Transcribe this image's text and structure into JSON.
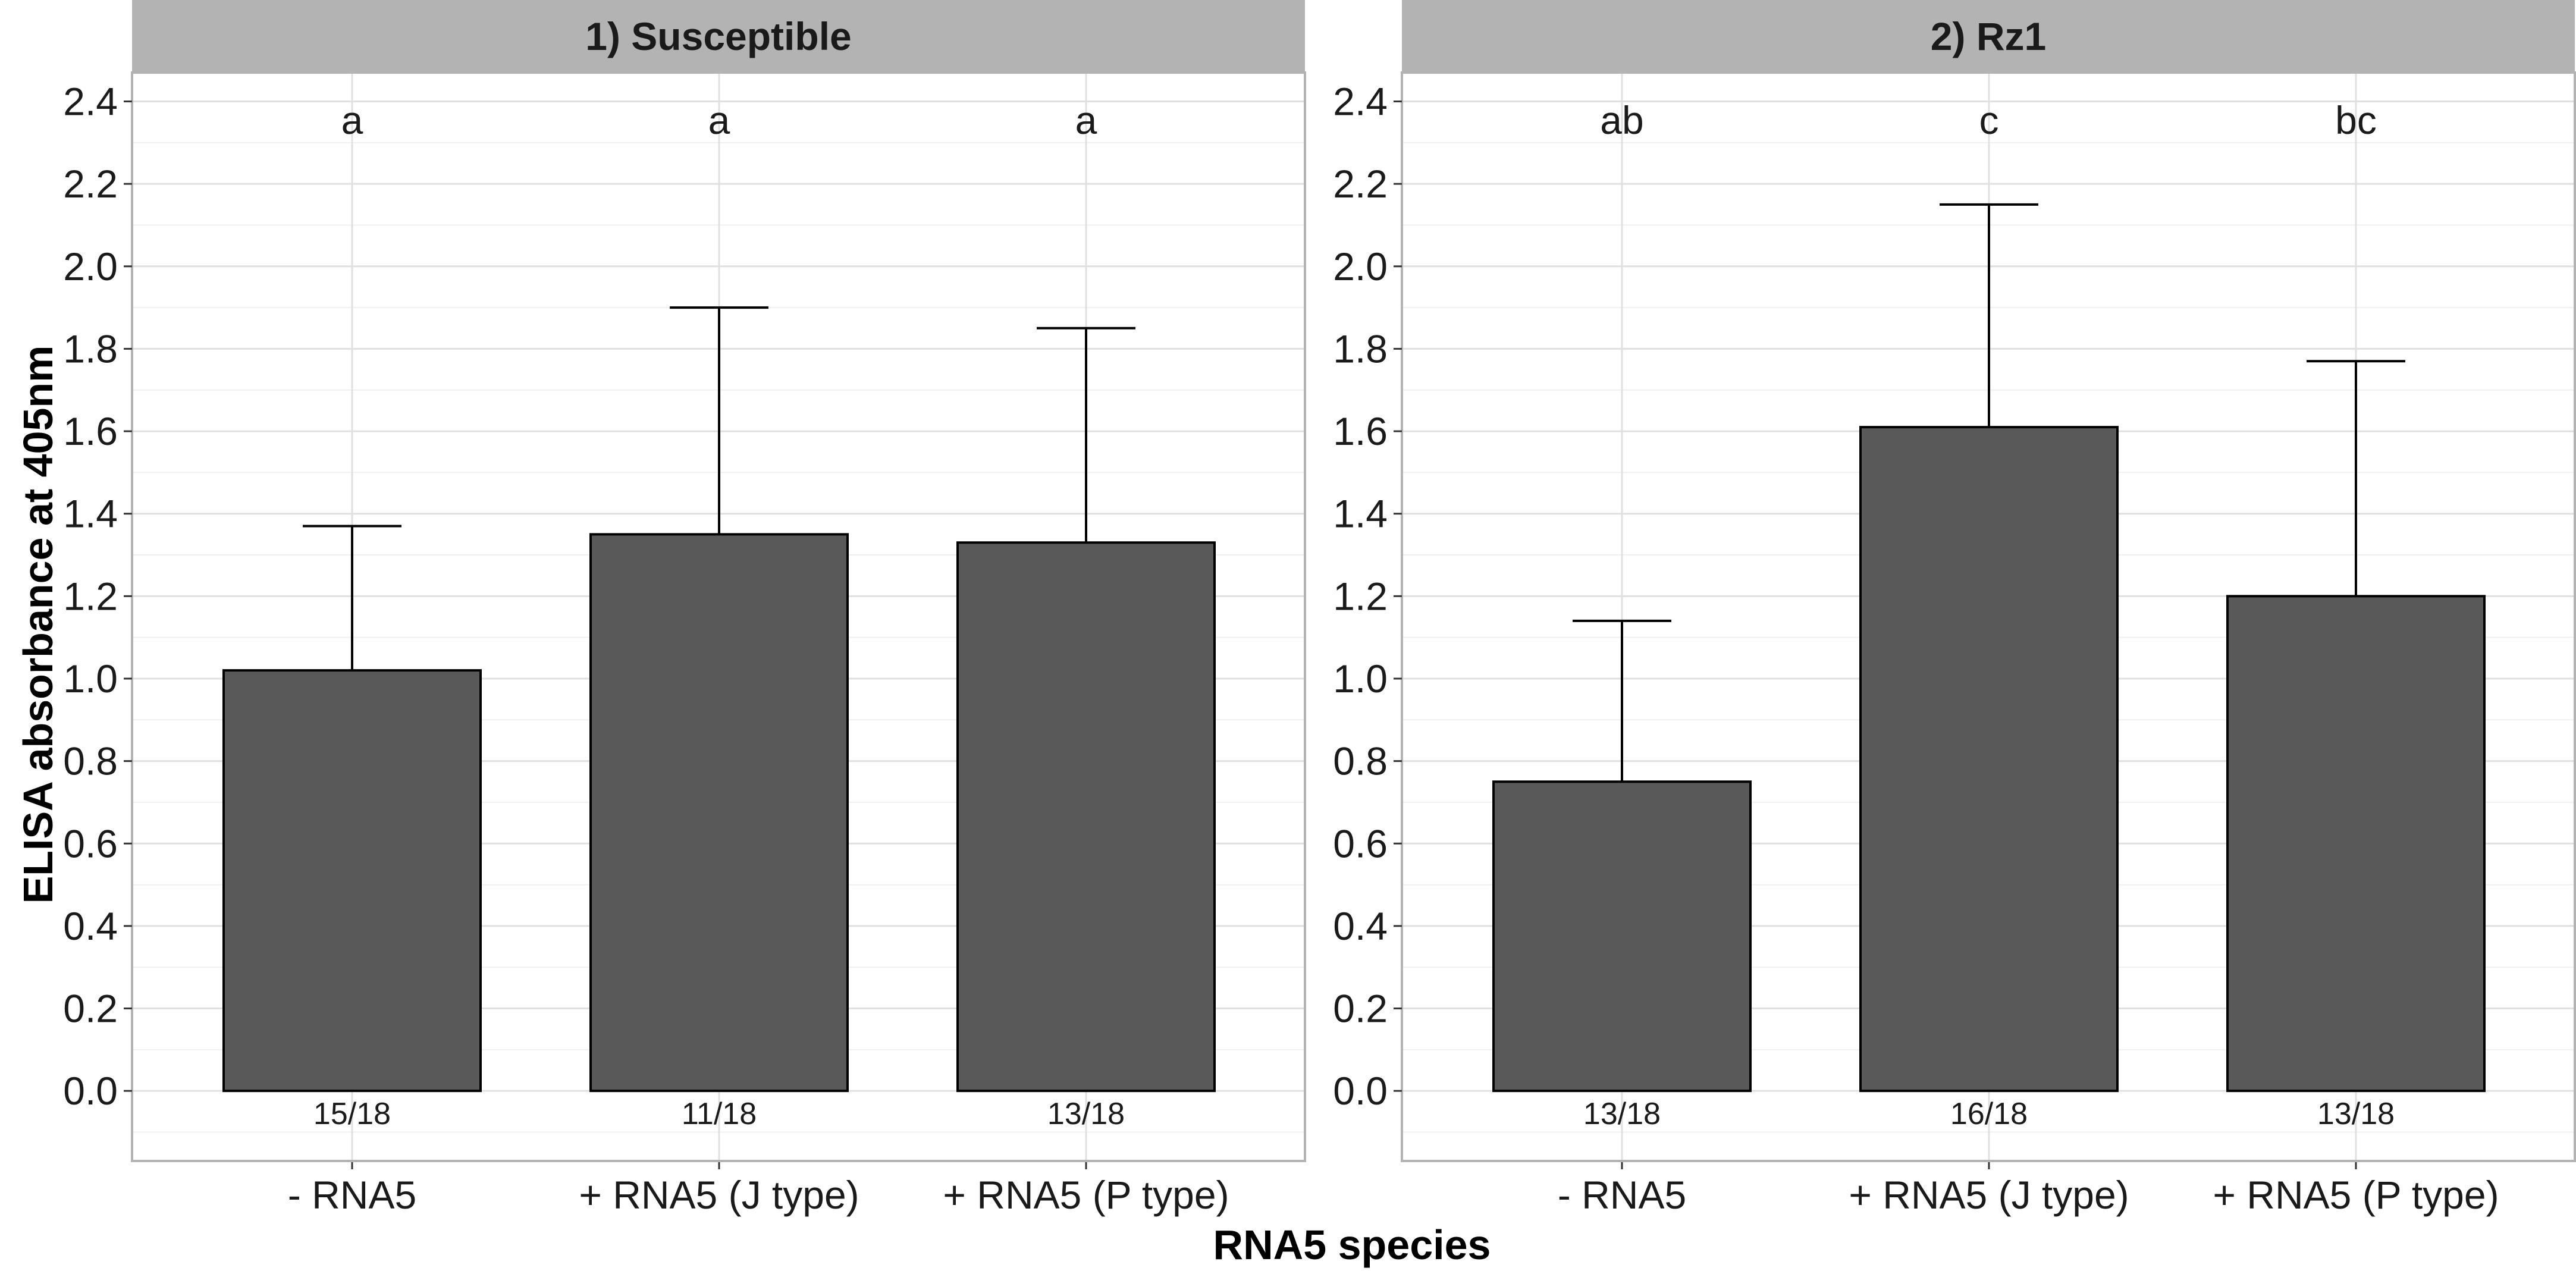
{
  "chart_data": {
    "type": "bar",
    "ylabel": "ELISA absorbance at 405nm",
    "xlabel": "RNA5 species",
    "ylim": [
      -0.17,
      2.47
    ],
    "yticks": [
      "0.0",
      "0.2",
      "0.4",
      "0.6",
      "0.8",
      "1.0",
      "1.2",
      "1.4",
      "1.6",
      "1.8",
      "2.0",
      "2.2",
      "2.4"
    ],
    "categories": [
      "- RNA5",
      "+ RNA5 (J type)",
      "+ RNA5 (P type)"
    ],
    "bar_color": "#595959",
    "strip_color": "#b3b3b3",
    "grid": true,
    "panels": [
      {
        "title": "1) Susceptible",
        "values": [
          1.02,
          1.35,
          1.33
        ],
        "error_upper": [
          1.37,
          1.9,
          1.85
        ],
        "significance": [
          "a",
          "a",
          "a"
        ],
        "counts": [
          "15/18",
          "11/18",
          "13/18"
        ]
      },
      {
        "title": "2) Rz1",
        "values": [
          0.75,
          1.61,
          1.2
        ],
        "error_upper": [
          1.14,
          2.15,
          1.77
        ],
        "significance": [
          "ab",
          "c",
          "bc"
        ],
        "counts": [
          "13/18",
          "16/18",
          "13/18"
        ]
      }
    ]
  }
}
